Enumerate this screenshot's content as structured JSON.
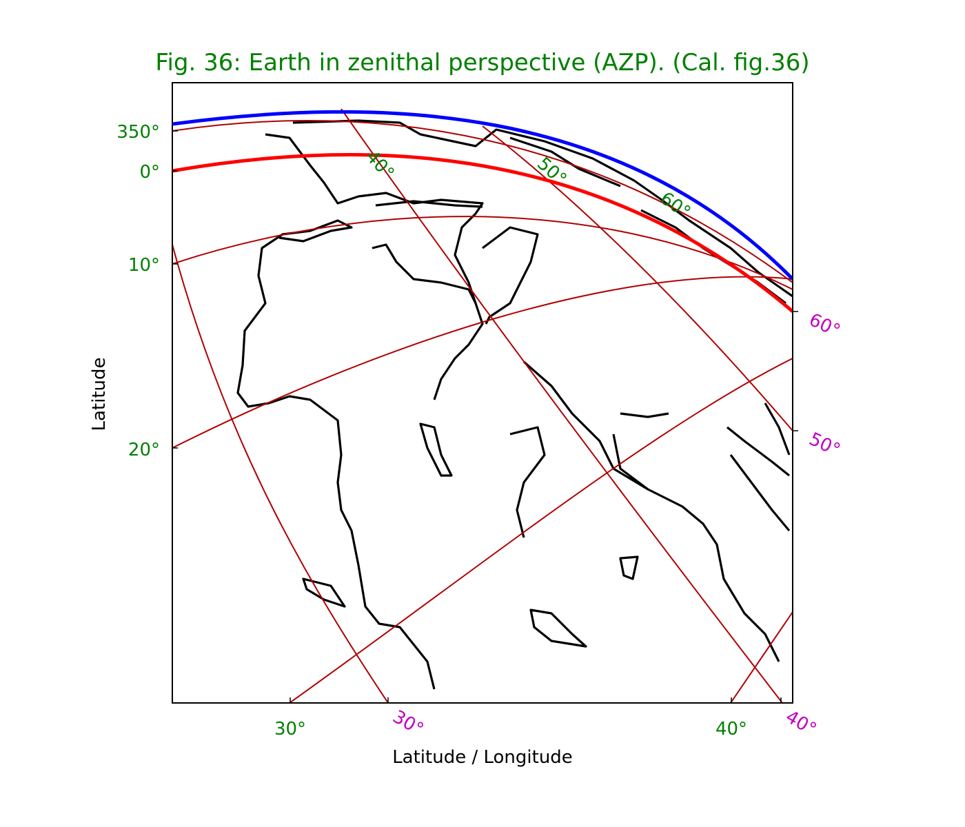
{
  "title": "Fig. 36: Earth in zenithal perspective (AZP). (Cal. fig.36)",
  "x_label": "Latitude / Longitude",
  "y_label": "Latitude",
  "left_ticks": [
    "350°",
    "0°",
    "10°",
    "20°"
  ],
  "bottom_ticks": [
    "30°",
    "40°"
  ],
  "right_ticks": [
    "60°",
    "50°"
  ],
  "bottom_right_ticks": [
    "30°",
    "40°"
  ],
  "inner_labels": [
    "40°",
    "50°",
    "60°"
  ]
}
